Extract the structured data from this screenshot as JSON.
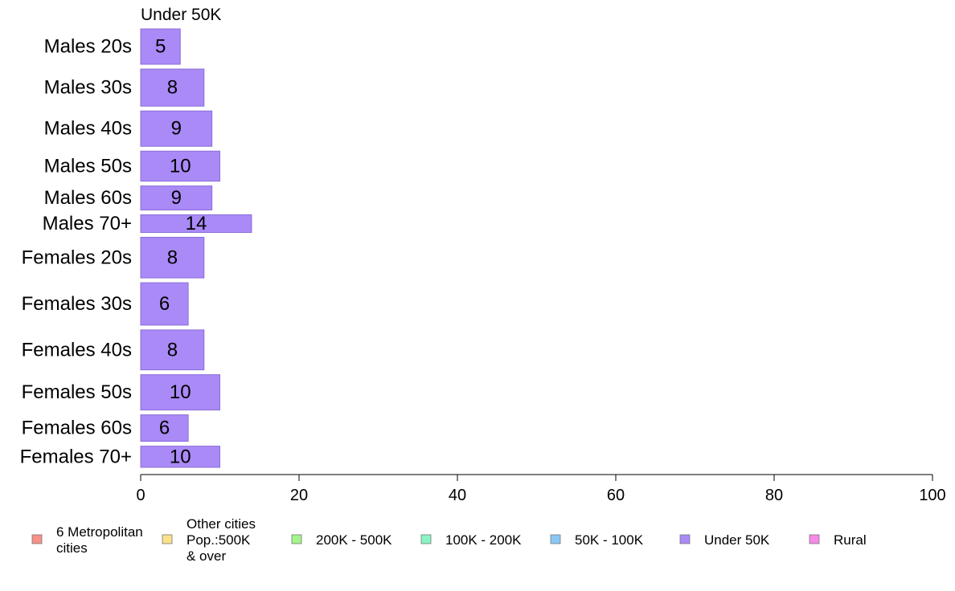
{
  "chart_data": {
    "type": "bar",
    "orientation": "horizontal",
    "title": "Under 50K",
    "categories": [
      "Males 20s",
      "Males 30s",
      "Males 40s",
      "Males 50s",
      "Males 60s",
      "Males 70+",
      "Females 20s",
      "Females 30s",
      "Females 40s",
      "Females 50s",
      "Females 60s",
      "Females 70+"
    ],
    "series": [
      {
        "name": "Under 50K",
        "values": [
          5,
          8,
          9,
          10,
          9,
          14,
          8,
          6,
          8,
          10,
          6,
          10
        ]
      }
    ],
    "bar_weights": [
      1.0,
      1.05,
      1.0,
      0.85,
      0.68,
      0.5,
      1.15,
      1.2,
      1.13,
      1.0,
      0.75,
      0.6
    ],
    "xlim": [
      0,
      100
    ],
    "xticks": [
      0,
      20,
      40,
      60,
      80,
      100
    ],
    "xlabel": "",
    "ylabel": "",
    "grid": false,
    "legend_position": "bottom",
    "legend": [
      {
        "label": [
          "6 Metropolitan",
          "cities"
        ],
        "color": "#f7918a"
      },
      {
        "label": [
          "Other cities",
          "Pop.:500K",
          "& over"
        ],
        "color": "#f9e28a"
      },
      {
        "label": [
          "200K - 500K"
        ],
        "color": "#a4f58a"
      },
      {
        "label": [
          "100K - 200K"
        ],
        "color": "#8af5c4"
      },
      {
        "label": [
          "50K - 100K"
        ],
        "color": "#8ac7f5"
      },
      {
        "label": [
          "Under 50K"
        ],
        "color": "#a98af7"
      },
      {
        "label": [
          "Rural"
        ],
        "color": "#f58ae8"
      }
    ],
    "bar_color": "#a98af7",
    "bar_border": "#8a6ed6"
  }
}
